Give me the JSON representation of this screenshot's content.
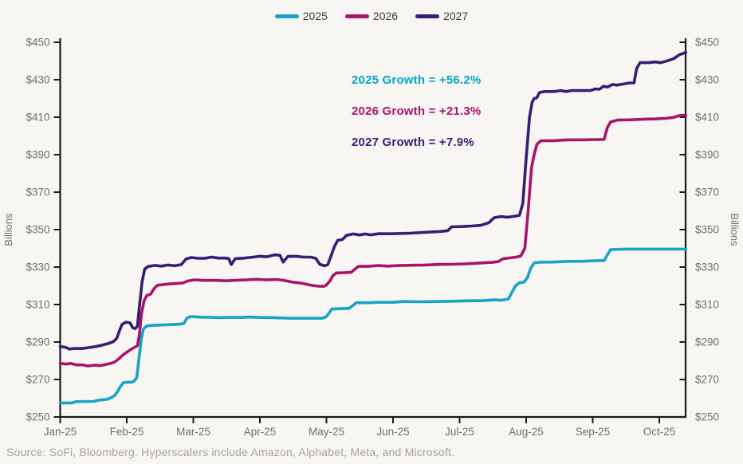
{
  "chart_data": {
    "type": "line",
    "title": "",
    "ylabel": "Billions",
    "ylim": [
      250,
      450
    ],
    "grid": false,
    "legend_position": "top-center",
    "ytick_values": [
      450,
      430,
      410,
      390,
      370,
      350,
      330,
      310,
      290,
      270,
      250
    ],
    "ytick_labels": [
      "$450",
      "$430",
      "$410",
      "$390",
      "$370",
      "$350",
      "$330",
      "$310",
      "$290",
      "$270",
      "$250"
    ],
    "categories": [
      "Jan-25",
      "Feb-25",
      "Mar-25",
      "Apr-25",
      "May-25",
      "Jun-25",
      "Jul-25",
      "Aug-25",
      "Sep-25",
      "Oct-25"
    ],
    "x_unit": "months since Jan-25 (fractional)",
    "annotations": [
      {
        "text": "2025 Growth = +56.2%",
        "color": "#00a7cb"
      },
      {
        "text": "2026 Growth = +21.3%",
        "color": "#ab1368"
      },
      {
        "text": "2027 Growth = +7.9%",
        "color": "#371d76"
      }
    ],
    "source": "Source: SoFi, Bloomberg. Hyperscalers include Amazon, Alphabet, Meta, and Microsoft.",
    "series": [
      {
        "name": "2025",
        "color": "#17a4c6",
        "points": [
          [
            0,
            257.5
          ],
          [
            0.18,
            257.5
          ],
          [
            0.24,
            258.2
          ],
          [
            0.5,
            258.3
          ],
          [
            0.58,
            259
          ],
          [
            0.7,
            259.4
          ],
          [
            0.76,
            260.2
          ],
          [
            0.82,
            261.5
          ],
          [
            0.86,
            263.5
          ],
          [
            0.9,
            266
          ],
          [
            0.95,
            268.3
          ],
          [
            1.02,
            268.6
          ],
          [
            1.08,
            268.5
          ],
          [
            1.12,
            269.5
          ],
          [
            1.15,
            271
          ],
          [
            1.18,
            280
          ],
          [
            1.22,
            292
          ],
          [
            1.25,
            297
          ],
          [
            1.3,
            298.6
          ],
          [
            1.4,
            298.9
          ],
          [
            1.55,
            299.1
          ],
          [
            1.7,
            299.3
          ],
          [
            1.82,
            299.6
          ],
          [
            1.86,
            300
          ],
          [
            1.9,
            302.6
          ],
          [
            1.95,
            303.6
          ],
          [
            2.1,
            303.3
          ],
          [
            2.25,
            303.2
          ],
          [
            2.4,
            303
          ],
          [
            2.55,
            303.2
          ],
          [
            2.7,
            303.1
          ],
          [
            2.85,
            303.3
          ],
          [
            3.0,
            303.1
          ],
          [
            3.2,
            303
          ],
          [
            3.45,
            302.7
          ],
          [
            3.7,
            302.7
          ],
          [
            3.94,
            302.7
          ],
          [
            4.0,
            303.6
          ],
          [
            4.04,
            305.5
          ],
          [
            4.08,
            307.6
          ],
          [
            4.2,
            307.8
          ],
          [
            4.34,
            308
          ],
          [
            4.4,
            309.6
          ],
          [
            4.45,
            311
          ],
          [
            4.62,
            311
          ],
          [
            4.82,
            311.2
          ],
          [
            5.0,
            311.2
          ],
          [
            5.16,
            311.6
          ],
          [
            5.42,
            311.5
          ],
          [
            5.68,
            311.6
          ],
          [
            5.9,
            311.8
          ],
          [
            6.12,
            312
          ],
          [
            6.35,
            312.1
          ],
          [
            6.52,
            312.5
          ],
          [
            6.62,
            312.3
          ],
          [
            6.73,
            312.9
          ],
          [
            6.78,
            316
          ],
          [
            6.84,
            320
          ],
          [
            6.9,
            321.6
          ],
          [
            6.97,
            322
          ],
          [
            7.02,
            324.5
          ],
          [
            7.07,
            329.5
          ],
          [
            7.12,
            332.2
          ],
          [
            7.2,
            332.6
          ],
          [
            7.4,
            332.7
          ],
          [
            7.6,
            333
          ],
          [
            7.85,
            333.1
          ],
          [
            8.05,
            333.4
          ],
          [
            8.17,
            333.5
          ],
          [
            8.22,
            336.5
          ],
          [
            8.27,
            339.3
          ],
          [
            8.5,
            339.6
          ],
          [
            8.8,
            339.6
          ],
          [
            9.1,
            339.6
          ],
          [
            9.4,
            339.6
          ]
        ]
      },
      {
        "name": "2026",
        "color": "#ab1368",
        "points": [
          [
            0,
            278.6
          ],
          [
            0.1,
            278.2
          ],
          [
            0.16,
            278.6
          ],
          [
            0.24,
            277.8
          ],
          [
            0.34,
            277.8
          ],
          [
            0.42,
            277.2
          ],
          [
            0.5,
            277.6
          ],
          [
            0.6,
            277.4
          ],
          [
            0.68,
            278
          ],
          [
            0.76,
            278.6
          ],
          [
            0.82,
            279.4
          ],
          [
            0.88,
            281
          ],
          [
            0.94,
            283
          ],
          [
            1.0,
            284.5
          ],
          [
            1.06,
            286
          ],
          [
            1.12,
            287.2
          ],
          [
            1.16,
            288
          ],
          [
            1.19,
            294
          ],
          [
            1.22,
            305
          ],
          [
            1.26,
            312
          ],
          [
            1.3,
            314.8
          ],
          [
            1.36,
            315.6
          ],
          [
            1.41,
            318.5
          ],
          [
            1.46,
            320.3
          ],
          [
            1.58,
            320.8
          ],
          [
            1.72,
            321.2
          ],
          [
            1.84,
            321.5
          ],
          [
            1.92,
            322.6
          ],
          [
            2.02,
            323.2
          ],
          [
            2.18,
            322.9
          ],
          [
            2.34,
            322.9
          ],
          [
            2.5,
            322.7
          ],
          [
            2.66,
            323
          ],
          [
            2.8,
            323.2
          ],
          [
            2.95,
            323.5
          ],
          [
            3.1,
            323.2
          ],
          [
            3.25,
            323.4
          ],
          [
            3.36,
            322.9
          ],
          [
            3.5,
            321.9
          ],
          [
            3.64,
            321.3
          ],
          [
            3.76,
            320.4
          ],
          [
            3.88,
            319.8
          ],
          [
            3.96,
            319.7
          ],
          [
            4.0,
            320.5
          ],
          [
            4.05,
            322.5
          ],
          [
            4.1,
            325.5
          ],
          [
            4.15,
            326.9
          ],
          [
            4.26,
            327
          ],
          [
            4.37,
            327.2
          ],
          [
            4.43,
            329
          ],
          [
            4.48,
            330.4
          ],
          [
            4.62,
            330.4
          ],
          [
            4.78,
            330.8
          ],
          [
            4.92,
            330.5
          ],
          [
            5.08,
            330.8
          ],
          [
            5.28,
            331
          ],
          [
            5.48,
            331.1
          ],
          [
            5.68,
            331.4
          ],
          [
            5.88,
            331.5
          ],
          [
            6.08,
            331.7
          ],
          [
            6.28,
            332.1
          ],
          [
            6.48,
            332.5
          ],
          [
            6.58,
            332.9
          ],
          [
            6.65,
            334.4
          ],
          [
            6.75,
            334.9
          ],
          [
            6.85,
            335.3
          ],
          [
            6.92,
            335.9
          ],
          [
            6.98,
            340
          ],
          [
            7.03,
            360
          ],
          [
            7.08,
            383
          ],
          [
            7.12,
            390
          ],
          [
            7.16,
            395.5
          ],
          [
            7.22,
            397.4
          ],
          [
            7.42,
            397.5
          ],
          [
            7.62,
            397.9
          ],
          [
            7.85,
            397.9
          ],
          [
            8.05,
            398.1
          ],
          [
            8.17,
            398.1
          ],
          [
            8.22,
            404.5
          ],
          [
            8.27,
            407.5
          ],
          [
            8.38,
            408.5
          ],
          [
            8.55,
            408.6
          ],
          [
            8.75,
            408.9
          ],
          [
            8.95,
            409.1
          ],
          [
            9.1,
            409.4
          ],
          [
            9.22,
            409.9
          ],
          [
            9.3,
            410.9
          ],
          [
            9.4,
            411.1
          ]
        ]
      },
      {
        "name": "2027",
        "color": "#371d76",
        "points": [
          [
            0,
            287.6
          ],
          [
            0.08,
            287.2
          ],
          [
            0.14,
            286.2
          ],
          [
            0.22,
            286.6
          ],
          [
            0.32,
            286.5
          ],
          [
            0.42,
            287
          ],
          [
            0.52,
            287.5
          ],
          [
            0.62,
            288.2
          ],
          [
            0.72,
            289.2
          ],
          [
            0.8,
            290.2
          ],
          [
            0.85,
            292
          ],
          [
            0.89,
            296
          ],
          [
            0.93,
            299.5
          ],
          [
            0.99,
            300.6
          ],
          [
            1.05,
            300.2
          ],
          [
            1.09,
            297.6
          ],
          [
            1.13,
            297.2
          ],
          [
            1.16,
            298.5
          ],
          [
            1.19,
            309
          ],
          [
            1.23,
            322
          ],
          [
            1.27,
            329
          ],
          [
            1.32,
            330.3
          ],
          [
            1.42,
            330.9
          ],
          [
            1.52,
            330.5
          ],
          [
            1.62,
            331.1
          ],
          [
            1.72,
            330.7
          ],
          [
            1.82,
            331.3
          ],
          [
            1.89,
            334.3
          ],
          [
            1.97,
            335.1
          ],
          [
            2.07,
            334.7
          ],
          [
            2.17,
            334.7
          ],
          [
            2.27,
            335.3
          ],
          [
            2.37,
            334.8
          ],
          [
            2.47,
            334.8
          ],
          [
            2.53,
            334.6
          ],
          [
            2.57,
            331.3
          ],
          [
            2.63,
            334.5
          ],
          [
            2.77,
            334.8
          ],
          [
            2.9,
            335.3
          ],
          [
            3.0,
            335.8
          ],
          [
            3.1,
            335.5
          ],
          [
            3.22,
            336.5
          ],
          [
            3.3,
            336.3
          ],
          [
            3.35,
            332.7
          ],
          [
            3.42,
            335.7
          ],
          [
            3.54,
            335.8
          ],
          [
            3.66,
            335.3
          ],
          [
            3.76,
            335.3
          ],
          [
            3.84,
            334.7
          ],
          [
            3.9,
            331.5
          ],
          [
            3.97,
            330.7
          ],
          [
            4.02,
            331.3
          ],
          [
            4.07,
            336
          ],
          [
            4.12,
            341
          ],
          [
            4.17,
            344.3
          ],
          [
            4.24,
            344.7
          ],
          [
            4.3,
            346.9
          ],
          [
            4.4,
            347.7
          ],
          [
            4.5,
            347.1
          ],
          [
            4.58,
            347.7
          ],
          [
            4.66,
            347.2
          ],
          [
            4.78,
            347.8
          ],
          [
            4.95,
            347.8
          ],
          [
            5.1,
            347.9
          ],
          [
            5.25,
            348.1
          ],
          [
            5.4,
            348.4
          ],
          [
            5.55,
            348.7
          ],
          [
            5.7,
            349
          ],
          [
            5.82,
            349.4
          ],
          [
            5.88,
            351.5
          ],
          [
            6.02,
            351.6
          ],
          [
            6.18,
            351.9
          ],
          [
            6.32,
            352.3
          ],
          [
            6.44,
            353.7
          ],
          [
            6.52,
            356.4
          ],
          [
            6.62,
            357
          ],
          [
            6.72,
            356.6
          ],
          [
            6.82,
            357.1
          ],
          [
            6.9,
            357.6
          ],
          [
            6.95,
            364
          ],
          [
            7.0,
            388
          ],
          [
            7.05,
            410
          ],
          [
            7.09,
            418
          ],
          [
            7.12,
            420
          ],
          [
            7.16,
            420.4
          ],
          [
            7.2,
            423.2
          ],
          [
            7.28,
            423.7
          ],
          [
            7.42,
            423.7
          ],
          [
            7.52,
            424.2
          ],
          [
            7.6,
            423.7
          ],
          [
            7.68,
            424.2
          ],
          [
            7.82,
            424.2
          ],
          [
            7.97,
            424.3
          ],
          [
            8.04,
            425.1
          ],
          [
            8.1,
            424.9
          ],
          [
            8.16,
            426.5
          ],
          [
            8.22,
            426.1
          ],
          [
            8.3,
            427.5
          ],
          [
            8.36,
            427.1
          ],
          [
            8.46,
            427.7
          ],
          [
            8.56,
            428.3
          ],
          [
            8.62,
            428.3
          ],
          [
            8.66,
            436
          ],
          [
            8.71,
            439.1
          ],
          [
            8.84,
            439.1
          ],
          [
            8.94,
            439.5
          ],
          [
            9.02,
            439.1
          ],
          [
            9.12,
            440.1
          ],
          [
            9.22,
            441.3
          ],
          [
            9.3,
            443.3
          ],
          [
            9.36,
            444.1
          ],
          [
            9.4,
            444.6
          ]
        ]
      }
    ]
  }
}
